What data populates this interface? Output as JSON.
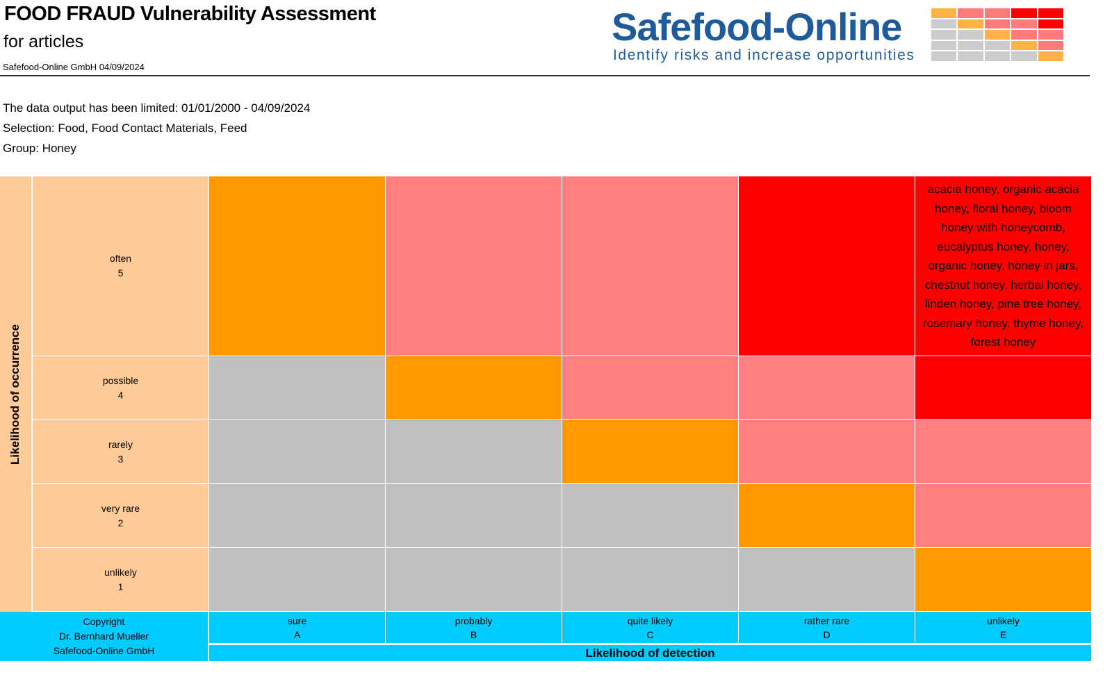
{
  "header": {
    "title": "FOOD FRAUD Vulnerability Assessment",
    "subtitle": "for articles",
    "byline": "Safefood-Online GmbH 04/09/2024",
    "logo_name": "Safefood-Online",
    "logo_tagline": "Identify risks and increase opportunities"
  },
  "info": {
    "limit": "The data output has been limited:  01/01/2000 - 04/09/2024",
    "selection": "Selection: Food, Food Contact Materials, Feed",
    "group": "Group: Honey"
  },
  "colors": {
    "orange": "#ff9900",
    "pink": "#ff8080",
    "red": "#ff0000",
    "gray": "#c0c0c0",
    "peach": "#ffcc99",
    "cyan": "#00ccff"
  },
  "logo_colors": {
    "orange": "#ffb347",
    "pink": "#ff7a7a",
    "red": "#ff0000",
    "gray": "#cccccc"
  },
  "matrix": {
    "y_axis_label": "Likelihood of occurrence",
    "x_axis_label": "Likelihood of detection",
    "copyright": [
      "Copyright",
      "Dr. Bernhard Mueller",
      "Safefood-Online GmbH"
    ],
    "rows": [
      {
        "label": "often",
        "score": "5",
        "cells": [
          "orange",
          "pink",
          "pink",
          "red",
          "red"
        ]
      },
      {
        "label": "possible",
        "score": "4",
        "cells": [
          "gray",
          "orange",
          "pink",
          "pink",
          "red"
        ]
      },
      {
        "label": "rarely",
        "score": "3",
        "cells": [
          "gray",
          "gray",
          "orange",
          "pink",
          "pink"
        ]
      },
      {
        "label": "very rare",
        "score": "2",
        "cells": [
          "gray",
          "gray",
          "gray",
          "orange",
          "pink"
        ]
      },
      {
        "label": "unlikely",
        "score": "1",
        "cells": [
          "gray",
          "gray",
          "gray",
          "gray",
          "orange"
        ]
      }
    ],
    "columns": [
      {
        "label": "sure",
        "code": "A"
      },
      {
        "label": "probably",
        "code": "B"
      },
      {
        "label": "quite likely",
        "code": "C"
      },
      {
        "label": "rather rare",
        "code": "D"
      },
      {
        "label": "unlikely",
        "code": "E"
      }
    ],
    "items_5E": "acacia honey, organic acacia honey, floral honey, bloom honey with honeycomb, eucalyptus honey, honey, organic honey, honey in jars, chestnut honey, herbal honey, linden honey, pine tree honey, rosemary honey, thyme honey, forest honey"
  }
}
